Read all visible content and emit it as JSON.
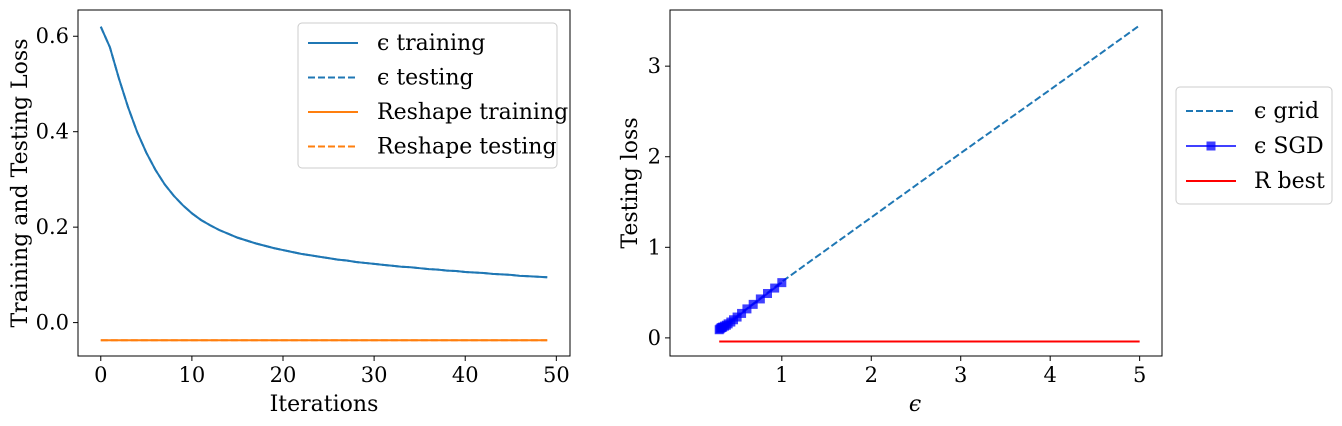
{
  "chart_data": [
    {
      "type": "line",
      "xlabel": "Iterations",
      "ylabel": "Training and Testing Loss",
      "xlim": [
        -2.5,
        51.5
      ],
      "ylim": [
        -0.07,
        0.655
      ],
      "xticks": [
        "0",
        "10",
        "20",
        "30",
        "40",
        "50"
      ],
      "yticks": [
        "0.0",
        "0.2",
        "0.4",
        "0.6"
      ],
      "legend_position": "top-right",
      "x": [
        0,
        1,
        2,
        3,
        4,
        5,
        6,
        7,
        8,
        9,
        10,
        11,
        12,
        13,
        14,
        15,
        16,
        17,
        18,
        19,
        20,
        21,
        22,
        23,
        24,
        25,
        26,
        27,
        28,
        29,
        30,
        31,
        32,
        33,
        34,
        35,
        36,
        37,
        38,
        39,
        40,
        41,
        42,
        43,
        44,
        45,
        46,
        47,
        48,
        49
      ],
      "series": [
        {
          "name": "ϵ training",
          "color": "#1f77b4",
          "linestyle": "solid",
          "values": [
            0.62,
            0.577,
            0.511,
            0.451,
            0.399,
            0.356,
            0.32,
            0.29,
            0.266,
            0.246,
            0.229,
            0.215,
            0.204,
            0.194,
            0.186,
            0.178,
            0.172,
            0.166,
            0.161,
            0.156,
            0.152,
            0.148,
            0.144,
            0.141,
            0.138,
            0.135,
            0.132,
            0.13,
            0.127,
            0.125,
            0.123,
            0.121,
            0.119,
            0.117,
            0.116,
            0.114,
            0.112,
            0.111,
            0.109,
            0.108,
            0.106,
            0.105,
            0.104,
            0.102,
            0.101,
            0.1,
            0.098,
            0.097,
            0.096,
            0.095
          ]
        },
        {
          "name": "ϵ testing",
          "color": "#1f77b4",
          "linestyle": "dashed",
          "values": [
            0.62,
            0.577,
            0.511,
            0.451,
            0.399,
            0.356,
            0.32,
            0.29,
            0.266,
            0.246,
            0.229,
            0.215,
            0.204,
            0.194,
            0.186,
            0.178,
            0.172,
            0.166,
            0.161,
            0.156,
            0.152,
            0.148,
            0.144,
            0.141,
            0.138,
            0.135,
            0.132,
            0.13,
            0.127,
            0.125,
            0.123,
            0.121,
            0.119,
            0.117,
            0.116,
            0.114,
            0.112,
            0.111,
            0.109,
            0.108,
            0.106,
            0.105,
            0.104,
            0.102,
            0.101,
            0.1,
            0.098,
            0.097,
            0.096,
            0.095
          ]
        },
        {
          "name": "Reshape training",
          "color": "#ff7f0e",
          "linestyle": "solid",
          "values": [
            -0.037,
            -0.037,
            -0.037,
            -0.037,
            -0.037,
            -0.037,
            -0.037,
            -0.037,
            -0.037,
            -0.037,
            -0.037,
            -0.037,
            -0.037,
            -0.037,
            -0.037,
            -0.037,
            -0.037,
            -0.037,
            -0.037,
            -0.037,
            -0.037,
            -0.037,
            -0.037,
            -0.037,
            -0.037,
            -0.037,
            -0.037,
            -0.037,
            -0.037,
            -0.037,
            -0.037,
            -0.037,
            -0.037,
            -0.037,
            -0.037,
            -0.037,
            -0.037,
            -0.037,
            -0.037,
            -0.037,
            -0.037,
            -0.037,
            -0.037,
            -0.037,
            -0.037,
            -0.037,
            -0.037,
            -0.037,
            -0.037,
            -0.037
          ]
        },
        {
          "name": "Reshape testing",
          "color": "#ff7f0e",
          "linestyle": "dashed",
          "values": [
            -0.037,
            -0.037,
            -0.037,
            -0.037,
            -0.037,
            -0.037,
            -0.037,
            -0.037,
            -0.037,
            -0.037,
            -0.037,
            -0.037,
            -0.037,
            -0.037,
            -0.037,
            -0.037,
            -0.037,
            -0.037,
            -0.037,
            -0.037,
            -0.037,
            -0.037,
            -0.037,
            -0.037,
            -0.037,
            -0.037,
            -0.037,
            -0.037,
            -0.037,
            -0.037,
            -0.037,
            -0.037,
            -0.037,
            -0.037,
            -0.037,
            -0.037,
            -0.037,
            -0.037,
            -0.037,
            -0.037,
            -0.037,
            -0.037,
            -0.037,
            -0.037,
            -0.037,
            -0.037,
            -0.037,
            -0.037,
            -0.037,
            -0.037
          ]
        }
      ]
    },
    {
      "type": "line",
      "xlabel": "ϵ",
      "ylabel": "Testing loss",
      "xlim": [
        -0.25,
        5.25
      ],
      "ylim": [
        -0.2,
        3.62
      ],
      "xticks": [
        "1",
        "2",
        "3",
        "4",
        "5"
      ],
      "yticks": [
        "0",
        "1",
        "2",
        "3"
      ],
      "legend_position": "outside right",
      "series": [
        {
          "name": "ϵ grid",
          "color": "#1f77b4",
          "linestyle": "dashed",
          "x": [
            0.3,
            0.5,
            1.0,
            2.0,
            3.0,
            4.0,
            5.0
          ],
          "values": [
            0.09,
            0.24,
            0.62,
            1.33,
            2.04,
            2.74,
            3.45
          ]
        },
        {
          "name": "ϵ SGD",
          "color": "#0000ff",
          "linestyle": "solid",
          "marker": "square",
          "x": [
            0.3,
            0.31,
            0.32,
            0.33,
            0.34,
            0.36,
            0.38,
            0.4,
            0.43,
            0.46,
            0.5,
            0.55,
            0.61,
            0.68,
            0.76,
            0.84,
            0.92,
            1.0
          ],
          "values": [
            0.09,
            0.1,
            0.11,
            0.115,
            0.12,
            0.13,
            0.14,
            0.155,
            0.175,
            0.2,
            0.23,
            0.27,
            0.32,
            0.37,
            0.43,
            0.49,
            0.55,
            0.61
          ]
        },
        {
          "name": "R best",
          "color": "#ff0000",
          "linestyle": "solid",
          "x": [
            0.3,
            5.0
          ],
          "values": [
            -0.04,
            -0.04
          ]
        }
      ]
    }
  ]
}
